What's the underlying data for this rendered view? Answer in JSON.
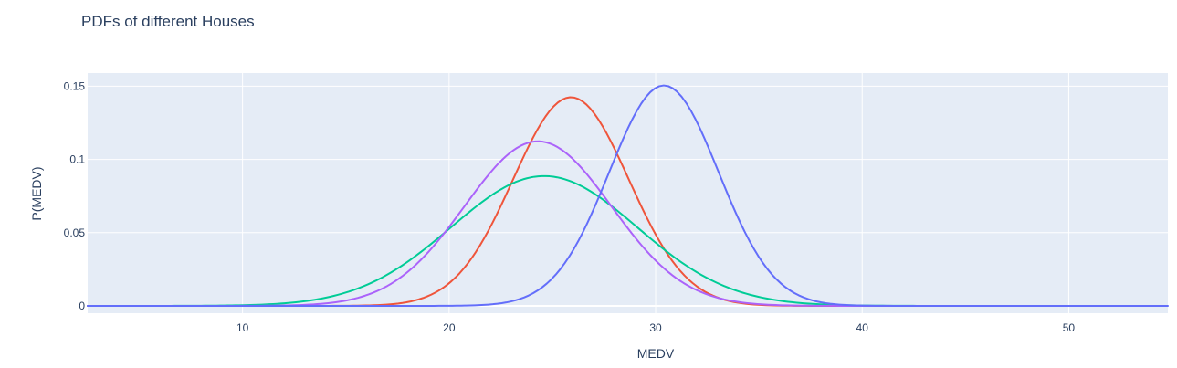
{
  "chart_data": {
    "type": "line",
    "title": "PDFs of different Houses",
    "xlabel": "MEDV",
    "ylabel": "P(MEDV)",
    "xlim": [
      2.5,
      54.8
    ],
    "ylim": [
      -0.005,
      0.159
    ],
    "xticks": [
      10,
      20,
      30,
      40,
      50
    ],
    "yticks": [
      0,
      0.05,
      0.1,
      0.15
    ],
    "ytick_labels": [
      "0",
      "0.05",
      "0.1",
      "0.15"
    ],
    "grid": true,
    "legend": "none",
    "plot_background": "#e5ecf6",
    "series": [
      {
        "color": "#EF553B",
        "mean": 25.9,
        "std": 2.8,
        "x_range": [
          2.5,
          50
        ]
      },
      {
        "color": "#00CC96",
        "mean": 24.6,
        "std": 4.5,
        "x_range": [
          2.5,
          46.5
        ]
      },
      {
        "color": "#AB63FA",
        "mean": 24.3,
        "std": 3.55,
        "x_range": [
          2.5,
          45.5
        ]
      },
      {
        "color": "#636EFA",
        "mean": 30.4,
        "std": 2.65,
        "x_range": [
          2.5,
          54.8
        ]
      }
    ]
  }
}
